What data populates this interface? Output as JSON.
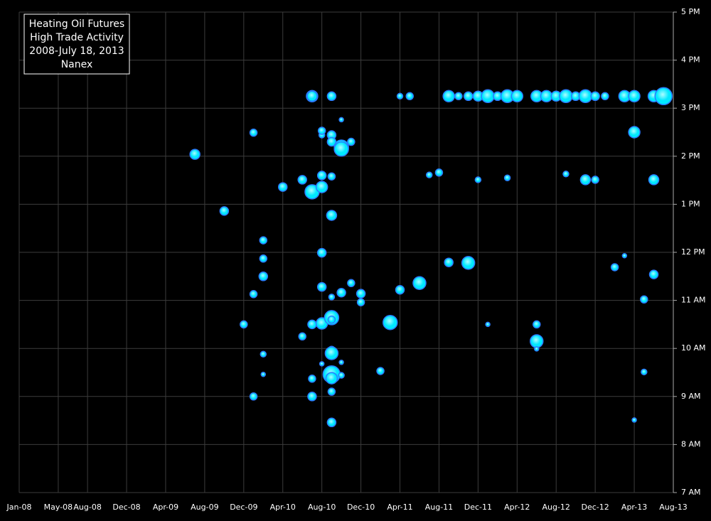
{
  "chart_data": {
    "type": "scatter",
    "title_lines": [
      "Heating Oil Futures",
      "High Trade Activity",
      "2008-July 18, 2013",
      "Nanex"
    ],
    "xlim": [
      "2008-01",
      "2013-08"
    ],
    "xticks": [
      {
        "value": "2008-01",
        "label": "Jan-08"
      },
      {
        "value": "2008-05",
        "label": "May-08"
      },
      {
        "value": "2008-08",
        "label": "Aug-08"
      },
      {
        "value": "2008-12",
        "label": "Dec-08"
      },
      {
        "value": "2009-04",
        "label": "Apr-09"
      },
      {
        "value": "2009-08",
        "label": "Aug-09"
      },
      {
        "value": "2009-12",
        "label": "Dec-09"
      },
      {
        "value": "2010-04",
        "label": "Apr-10"
      },
      {
        "value": "2010-08",
        "label": "Aug-10"
      },
      {
        "value": "2010-12",
        "label": "Dec-10"
      },
      {
        "value": "2011-04",
        "label": "Apr-11"
      },
      {
        "value": "2011-08",
        "label": "Aug-11"
      },
      {
        "value": "2011-12",
        "label": "Dec-11"
      },
      {
        "value": "2012-04",
        "label": "Apr-12"
      },
      {
        "value": "2012-08",
        "label": "Aug-12"
      },
      {
        "value": "2012-12",
        "label": "Dec-12"
      },
      {
        "value": "2013-04",
        "label": "Apr-13"
      },
      {
        "value": "2013-08",
        "label": "Aug-13"
      }
    ],
    "ylim": [
      7,
      17
    ],
    "yticks": [
      {
        "value": 7,
        "label": "7 AM"
      },
      {
        "value": 8,
        "label": "8 AM"
      },
      {
        "value": 9,
        "label": "9 AM"
      },
      {
        "value": 10,
        "label": "10 AM"
      },
      {
        "value": 11,
        "label": "11 AM"
      },
      {
        "value": 12,
        "label": "12 PM"
      },
      {
        "value": 13,
        "label": "1 PM"
      },
      {
        "value": 14,
        "label": "2 PM"
      },
      {
        "value": 15,
        "label": "3 PM"
      },
      {
        "value": 16,
        "label": "4 PM"
      },
      {
        "value": 17,
        "label": "5 PM"
      }
    ],
    "grid": true,
    "color": "#00e8ff",
    "edge_color": "#2a7cff",
    "x": [
      "2010-07",
      "2010-07",
      "2010-09",
      "2011-04",
      "2011-05",
      "2011-09",
      "2011-10",
      "2011-11",
      "2011-12",
      "2012-01",
      "2012-02",
      "2012-03",
      "2012-04",
      "2012-06",
      "2012-07",
      "2012-08",
      "2012-09",
      "2012-10",
      "2012-11",
      "2012-12",
      "2013-01",
      "2013-03",
      "2013-04",
      "2013-06",
      "2013-07",
      "2009-07",
      "2009-10",
      "2010-01",
      "2010-01",
      "2009-12",
      "2010-01",
      "2010-02",
      "2010-02",
      "2010-02",
      "2010-02",
      "2010-02",
      "2010-04",
      "2010-06",
      "2010-06",
      "2010-07",
      "2010-07",
      "2010-08",
      "2010-07",
      "2010-07",
      "2010-08",
      "2010-08",
      "2010-08",
      "2010-08",
      "2010-08",
      "2010-08",
      "2010-09",
      "2010-09",
      "2010-09",
      "2010-09",
      "2010-09",
      "2010-09",
      "2010-09",
      "2010-09",
      "2010-09",
      "2010-09",
      "2010-09",
      "2010-10",
      "2010-09",
      "2010-09",
      "2010-10",
      "2010-10",
      "2010-11",
      "2010-10",
      "2010-08",
      "2010-10",
      "2010-10",
      "2010-11",
      "2010-12",
      "2010-12",
      "2011-02",
      "2011-03",
      "2011-04",
      "2011-06",
      "2011-07",
      "2011-08",
      "2011-09",
      "2011-11",
      "2011-12",
      "2012-01",
      "2012-03",
      "2012-06",
      "2012-06",
      "2012-06",
      "2012-09",
      "2012-11",
      "2012-12",
      "2013-02",
      "2013-03",
      "2013-04",
      "2013-04",
      "2013-05",
      "2013-05",
      "2013-06",
      "2013-06"
    ],
    "y": [
      15.25,
      15.25,
      15.25,
      15.25,
      15.25,
      15.25,
      15.25,
      15.25,
      15.25,
      15.25,
      15.25,
      15.25,
      15.25,
      15.25,
      15.25,
      15.25,
      15.25,
      15.25,
      15.25,
      15.25,
      15.25,
      15.25,
      15.25,
      15.25,
      15.25,
      14.04,
      12.86,
      14.49,
      9.0,
      10.5,
      11.13,
      11.5,
      11.87,
      12.25,
      9.88,
      9.46,
      13.36,
      10.25,
      13.51,
      9.37,
      13.26,
      13.36,
      9.0,
      10.5,
      10.52,
      14.44,
      11.28,
      14.53,
      11.99,
      13.6,
      13.58,
      11.07,
      10.64,
      12.77,
      14.44,
      9.97,
      9.9,
      9.46,
      9.38,
      9.1,
      8.46,
      11.16,
      10.6,
      14.3,
      14.19,
      14.15,
      14.3,
      14.76,
      9.68,
      9.71,
      9.44,
      11.36,
      11.14,
      10.96,
      9.53,
      10.54,
      11.22,
      11.36,
      13.61,
      13.66,
      11.79,
      11.78,
      13.51,
      10.5,
      13.55,
      10.5,
      10.15,
      9.99,
      13.63,
      13.51,
      13.51,
      11.69,
      11.93,
      14.5,
      8.51,
      11.02,
      9.51,
      11.54,
      13.51
    ],
    "sizes": [
      8,
      7,
      6,
      4,
      5,
      8,
      5,
      6,
      7,
      9,
      6,
      9,
      8,
      8,
      8,
      7,
      9,
      6,
      9,
      6,
      5,
      8,
      8,
      8,
      12,
      7,
      6,
      5,
      5,
      5,
      5,
      6,
      5,
      5,
      4,
      3,
      6,
      5,
      6,
      5,
      10,
      8,
      6,
      6,
      8,
      4,
      6,
      5,
      6,
      6,
      5,
      4,
      10,
      7,
      6,
      5,
      9,
      12,
      8,
      5,
      6,
      6,
      5,
      6,
      10,
      10,
      5,
      3,
      3,
      3,
      4,
      5,
      6,
      5,
      5,
      10,
      6,
      9,
      4,
      5,
      6,
      9,
      4,
      3,
      4,
      5,
      9,
      3,
      4,
      7,
      5,
      5,
      3,
      8,
      3,
      5,
      4,
      6,
      7
    ]
  }
}
